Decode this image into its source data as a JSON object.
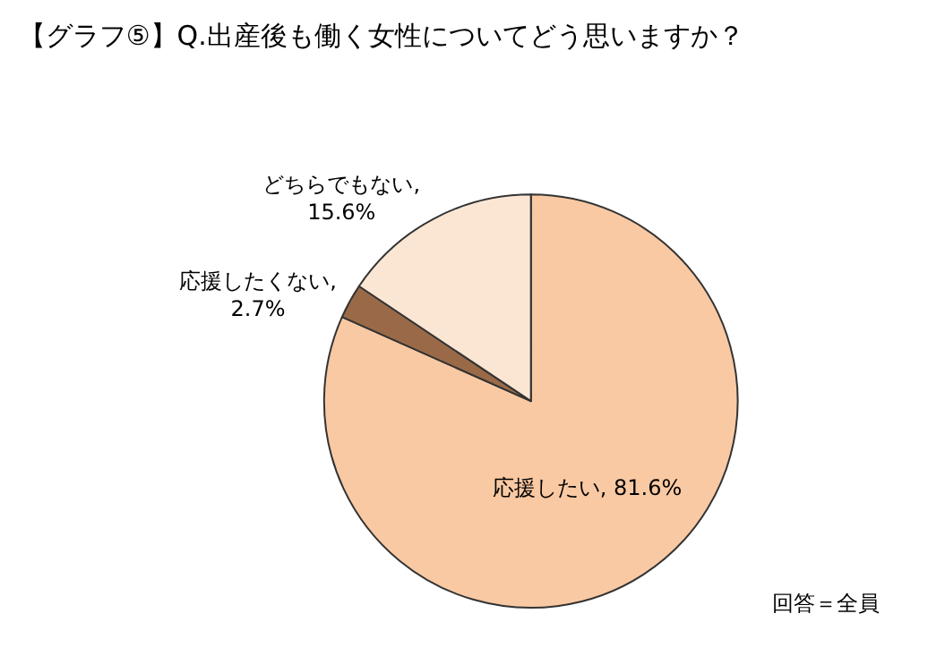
{
  "chart_data": {
    "type": "pie",
    "title": "【グラフ⑤】Q.出産後も働く女性についてどう思いますか？",
    "categories": [
      "応援したい",
      "応援したくない",
      "どちらでもない"
    ],
    "values": [
      81.6,
      2.7,
      15.6
    ],
    "colors": [
      "#f9c9a3",
      "#9a6a48",
      "#fbe6d4"
    ],
    "value_labels": [
      ", 81.6%",
      ",\n2.7%",
      ",\n15.6%"
    ],
    "annotations": [
      "回答＝全員"
    ],
    "legend": false
  }
}
